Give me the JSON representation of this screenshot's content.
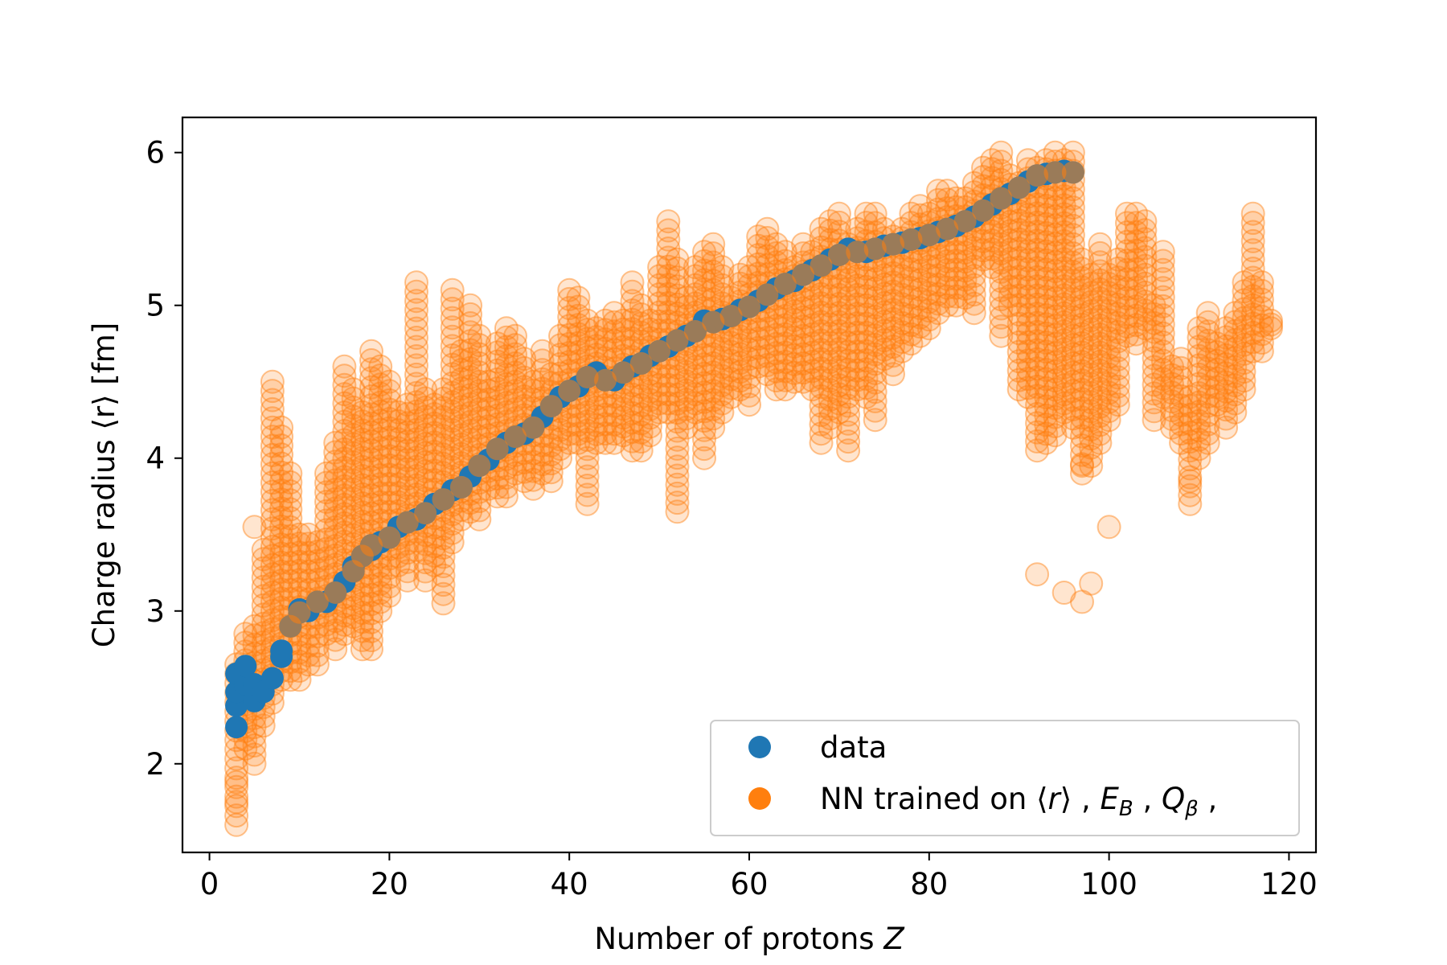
{
  "chart_data": {
    "type": "scatter",
    "xlabel": "Number of protons",
    "xlabel_var": "Z",
    "ylabel": "Charge radius ⟨r⟩ [fm]",
    "xlim": [
      -3,
      123
    ],
    "ylim": [
      1.42,
      6.23
    ],
    "xticks": [
      0,
      20,
      40,
      60,
      80,
      100,
      120
    ],
    "yticks": [
      2,
      3,
      4,
      5,
      6
    ],
    "grid": false,
    "legend_position": "lower-right",
    "legend": [
      {
        "label": "data",
        "color": "#1f77b4"
      },
      {
        "label": "NN trained on ⟨r⟩ ,  E_B ,  Q_β ,",
        "color": "#ff7f0e"
      }
    ],
    "series": [
      {
        "name": "data",
        "color": "#1f77b4",
        "opacity": 1.0,
        "points": [
          [
            3,
            2.24
          ],
          [
            3,
            2.38
          ],
          [
            3,
            2.47
          ],
          [
            3,
            2.59
          ],
          [
            4,
            2.52
          ],
          [
            4,
            2.64
          ],
          [
            5,
            2.41
          ],
          [
            5,
            2.52
          ],
          [
            6,
            2.47
          ],
          [
            7,
            2.56
          ],
          [
            8,
            2.7
          ],
          [
            8,
            2.74
          ],
          [
            9,
            2.9
          ],
          [
            10,
            3.01
          ],
          [
            10,
            2.99
          ],
          [
            11,
            3.0
          ],
          [
            12,
            3.06
          ],
          [
            13,
            3.06
          ],
          [
            14,
            3.12
          ],
          [
            15,
            3.19
          ],
          [
            16,
            3.26
          ],
          [
            16,
            3.29
          ],
          [
            17,
            3.36
          ],
          [
            18,
            3.4
          ],
          [
            18,
            3.43
          ],
          [
            19,
            3.45
          ],
          [
            20,
            3.48
          ],
          [
            21,
            3.55
          ],
          [
            22,
            3.58
          ],
          [
            23,
            3.6
          ],
          [
            24,
            3.64
          ],
          [
            25,
            3.7
          ],
          [
            26,
            3.73
          ],
          [
            27,
            3.79
          ],
          [
            28,
            3.81
          ],
          [
            29,
            3.88
          ],
          [
            30,
            3.95
          ],
          [
            31,
            3.99
          ],
          [
            32,
            4.06
          ],
          [
            33,
            4.1
          ],
          [
            34,
            4.14
          ],
          [
            35,
            4.16
          ],
          [
            36,
            4.2
          ],
          [
            37,
            4.27
          ],
          [
            38,
            4.34
          ],
          [
            39,
            4.4
          ],
          [
            40,
            4.44
          ],
          [
            41,
            4.47
          ],
          [
            42,
            4.53
          ],
          [
            43,
            4.56
          ],
          [
            44,
            4.51
          ],
          [
            45,
            4.51
          ],
          [
            46,
            4.56
          ],
          [
            47,
            4.6
          ],
          [
            48,
            4.62
          ],
          [
            49,
            4.67
          ],
          [
            50,
            4.7
          ],
          [
            51,
            4.73
          ],
          [
            52,
            4.77
          ],
          [
            53,
            4.8
          ],
          [
            54,
            4.83
          ],
          [
            55,
            4.9
          ],
          [
            56,
            4.89
          ],
          [
            57,
            4.91
          ],
          [
            58,
            4.93
          ],
          [
            59,
            4.97
          ],
          [
            60,
            4.99
          ],
          [
            61,
            5.03
          ],
          [
            62,
            5.07
          ],
          [
            63,
            5.11
          ],
          [
            64,
            5.14
          ],
          [
            65,
            5.16
          ],
          [
            66,
            5.2
          ],
          [
            67,
            5.23
          ],
          [
            68,
            5.26
          ],
          [
            69,
            5.3
          ],
          [
            70,
            5.33
          ],
          [
            71,
            5.37
          ],
          [
            72,
            5.35
          ],
          [
            73,
            5.35
          ],
          [
            74,
            5.37
          ],
          [
            75,
            5.39
          ],
          [
            76,
            5.4
          ],
          [
            77,
            5.41
          ],
          [
            78,
            5.43
          ],
          [
            79,
            5.44
          ],
          [
            80,
            5.46
          ],
          [
            81,
            5.48
          ],
          [
            82,
            5.5
          ],
          [
            83,
            5.52
          ],
          [
            84,
            5.55
          ],
          [
            85,
            5.58
          ],
          [
            86,
            5.62
          ],
          [
            87,
            5.66
          ],
          [
            88,
            5.7
          ],
          [
            89,
            5.73
          ],
          [
            90,
            5.77
          ],
          [
            91,
            5.81
          ],
          [
            92,
            5.85
          ],
          [
            93,
            5.86
          ],
          [
            94,
            5.87
          ],
          [
            95,
            5.88
          ],
          [
            96,
            5.87
          ]
        ]
      },
      {
        "name": "NN trained on ⟨r⟩ ,  E_B ,  Q_β ,",
        "color": "#ff7f0e",
        "opacity": 0.2,
        "ranges": [
          [
            3,
            1.6,
            2.65
          ],
          [
            4,
            2.1,
            2.85
          ],
          [
            5,
            2.0,
            2.9
          ],
          [
            6,
            2.25,
            3.4
          ],
          [
            7,
            2.4,
            4.5
          ],
          [
            8,
            2.55,
            4.2
          ],
          [
            9,
            2.55,
            3.9
          ],
          [
            10,
            2.55,
            3.5
          ],
          [
            11,
            2.65,
            3.5
          ],
          [
            12,
            2.65,
            3.45
          ],
          [
            13,
            2.85,
            3.9
          ],
          [
            14,
            2.75,
            4.1
          ],
          [
            15,
            2.85,
            4.6
          ],
          [
            16,
            2.9,
            4.45
          ],
          [
            17,
            2.75,
            4.3
          ],
          [
            18,
            2.75,
            4.7
          ],
          [
            19,
            3.0,
            4.6
          ],
          [
            20,
            3.1,
            4.5
          ],
          [
            21,
            3.3,
            4.3
          ],
          [
            22,
            3.2,
            4.35
          ],
          [
            23,
            3.4,
            5.15
          ],
          [
            24,
            3.2,
            4.45
          ],
          [
            25,
            3.3,
            4.35
          ],
          [
            26,
            3.05,
            4.45
          ],
          [
            27,
            3.45,
            5.1
          ],
          [
            28,
            3.6,
            4.7
          ],
          [
            29,
            3.65,
            5.0
          ],
          [
            30,
            3.6,
            4.8
          ],
          [
            31,
            3.8,
            4.5
          ],
          [
            32,
            3.75,
            4.75
          ],
          [
            33,
            3.75,
            4.85
          ],
          [
            34,
            3.9,
            4.8
          ],
          [
            35,
            3.85,
            4.65
          ],
          [
            36,
            3.8,
            4.5
          ],
          [
            37,
            3.9,
            4.7
          ],
          [
            38,
            3.85,
            4.55
          ],
          [
            39,
            4.0,
            4.8
          ],
          [
            40,
            4.1,
            5.1
          ],
          [
            41,
            4.1,
            5.05
          ],
          [
            42,
            3.7,
            4.9
          ],
          [
            43,
            4.1,
            4.85
          ],
          [
            44,
            4.1,
            4.9
          ],
          [
            45,
            4.1,
            4.95
          ],
          [
            46,
            4.15,
            4.9
          ],
          [
            47,
            4.05,
            5.15
          ],
          [
            48,
            4.05,
            5.0
          ],
          [
            49,
            4.15,
            4.9
          ],
          [
            50,
            4.3,
            5.25
          ],
          [
            51,
            4.3,
            5.55
          ],
          [
            52,
            3.65,
            5.3
          ],
          [
            53,
            4.2,
            5.05
          ],
          [
            54,
            4.3,
            5.25
          ],
          [
            55,
            4.0,
            5.35
          ],
          [
            56,
            4.2,
            5.4
          ],
          [
            57,
            4.3,
            5.25
          ],
          [
            58,
            4.4,
            5.05
          ],
          [
            59,
            4.45,
            5.2
          ],
          [
            60,
            4.35,
            5.25
          ],
          [
            61,
            4.6,
            5.45
          ],
          [
            62,
            4.55,
            5.5
          ],
          [
            63,
            4.45,
            5.4
          ],
          [
            64,
            4.45,
            5.35
          ],
          [
            65,
            4.5,
            5.25
          ],
          [
            66,
            4.5,
            5.4
          ],
          [
            67,
            4.45,
            5.35
          ],
          [
            68,
            4.1,
            5.5
          ],
          [
            69,
            4.2,
            5.55
          ],
          [
            70,
            4.3,
            5.6
          ],
          [
            71,
            4.05,
            5.4
          ],
          [
            72,
            4.45,
            5.5
          ],
          [
            73,
            4.4,
            5.6
          ],
          [
            74,
            4.25,
            5.6
          ],
          [
            75,
            4.65,
            5.5
          ],
          [
            76,
            4.55,
            5.45
          ],
          [
            77,
            4.7,
            5.5
          ],
          [
            78,
            4.75,
            5.6
          ],
          [
            79,
            4.8,
            5.65
          ],
          [
            80,
            4.85,
            5.6
          ],
          [
            81,
            4.95,
            5.75
          ],
          [
            82,
            5.0,
            5.75
          ],
          [
            83,
            5.0,
            5.7
          ],
          [
            84,
            5.05,
            5.7
          ],
          [
            85,
            4.95,
            5.8
          ],
          [
            86,
            5.3,
            5.9
          ],
          [
            87,
            5.25,
            5.95
          ],
          [
            88,
            4.8,
            6.0
          ],
          [
            89,
            5.0,
            5.85
          ],
          [
            90,
            4.45,
            5.8
          ],
          [
            91,
            4.4,
            5.95
          ],
          [
            92,
            4.05,
            5.9
          ],
          [
            93,
            4.1,
            5.95
          ],
          [
            94,
            4.15,
            6.0
          ],
          [
            95,
            4.3,
            5.95
          ],
          [
            96,
            4.2,
            6.0
          ],
          [
            97,
            3.9,
            5.3
          ],
          [
            98,
            3.95,
            5.2
          ],
          [
            99,
            4.1,
            5.4
          ],
          [
            100,
            4.25,
            5.2
          ],
          [
            101,
            4.35,
            5.3
          ],
          [
            102,
            4.8,
            5.6
          ],
          [
            103,
            4.75,
            5.6
          ],
          [
            104,
            4.85,
            5.55
          ],
          [
            105,
            4.25,
            5.0
          ],
          [
            106,
            4.4,
            5.35
          ],
          [
            107,
            4.2,
            4.6
          ],
          [
            108,
            4.1,
            4.65
          ],
          [
            109,
            3.7,
            4.4
          ],
          [
            110,
            4.0,
            4.85
          ],
          [
            111,
            4.1,
            4.95
          ],
          [
            112,
            4.35,
            4.75
          ],
          [
            113,
            4.2,
            4.85
          ],
          [
            114,
            4.3,
            4.95
          ],
          [
            115,
            4.45,
            5.15
          ],
          [
            116,
            4.7,
            5.6
          ],
          [
            117,
            4.7,
            5.15
          ],
          [
            118,
            4.85,
            4.9
          ]
        ],
        "outliers": [
          [
            3,
            1.75
          ],
          [
            3,
            1.88
          ],
          [
            5,
            3.55
          ],
          [
            92,
            3.24
          ],
          [
            95,
            3.12
          ],
          [
            97,
            3.06
          ],
          [
            98,
            3.18
          ],
          [
            100,
            3.55
          ],
          [
            97,
            3.95
          ],
          [
            109,
            3.85
          ]
        ]
      }
    ]
  }
}
